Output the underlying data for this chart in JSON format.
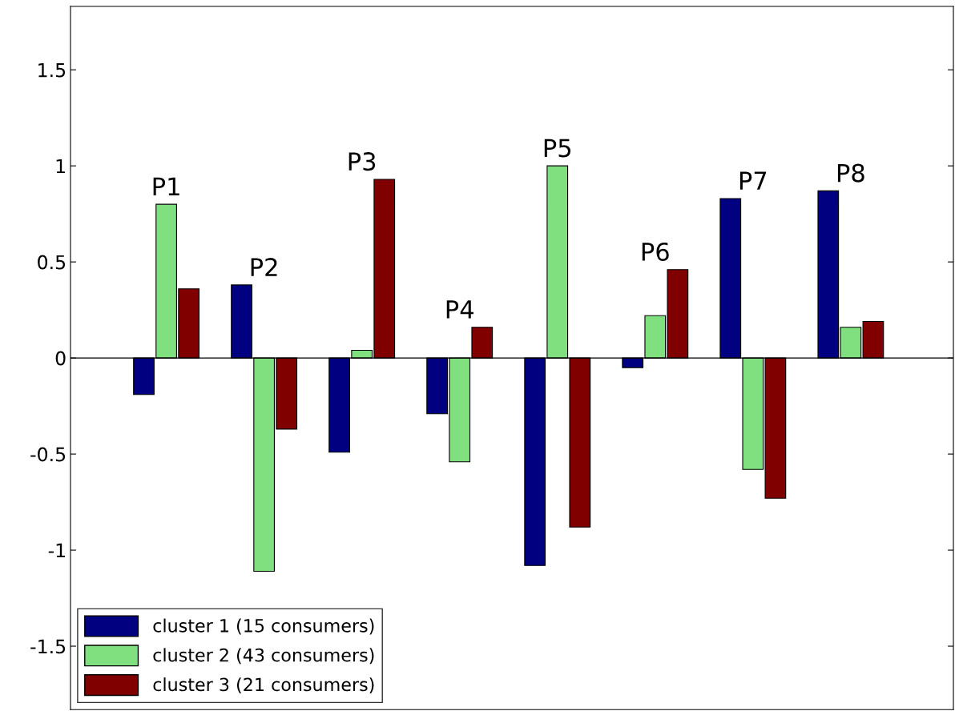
{
  "chart_data": {
    "type": "bar",
    "categories": [
      "P1",
      "P2",
      "P3",
      "P4",
      "P5",
      "P6",
      "P7",
      "P8"
    ],
    "series": [
      {
        "name": "cluster 1 (15 consumers)",
        "color": "#000080",
        "values": [
          -0.19,
          0.38,
          -0.49,
          -0.29,
          -1.08,
          -0.05,
          0.83,
          0.87
        ]
      },
      {
        "name": "cluster 2 (43 consumers)",
        "color": "#80e080",
        "values": [
          0.8,
          -1.11,
          0.04,
          -0.54,
          1.0,
          0.22,
          -0.58,
          0.16
        ]
      },
      {
        "name": "cluster 3 (21 consumers)",
        "color": "#800000",
        "values": [
          0.36,
          -0.37,
          0.93,
          0.16,
          -0.88,
          0.46,
          -0.73,
          0.19
        ]
      }
    ],
    "ylim": [
      -1.83,
      1.83
    ],
    "yticks": [
      -1.5,
      -1,
      -0.5,
      0,
      0.5,
      1,
      1.5
    ],
    "legend": "bottom left"
  }
}
